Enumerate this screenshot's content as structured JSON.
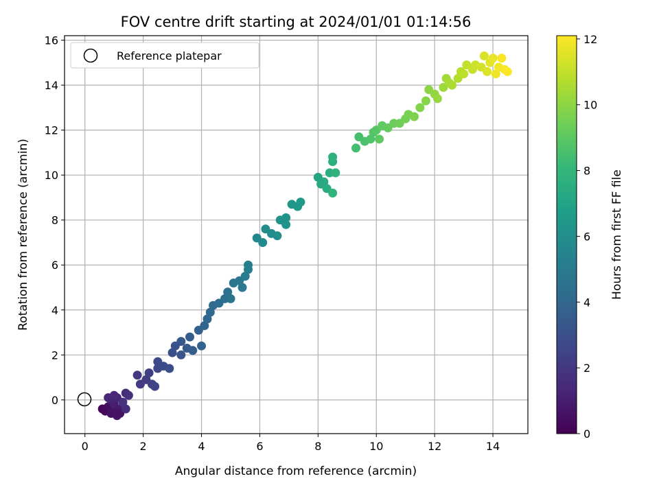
{
  "chart_data": {
    "type": "scatter",
    "title": "FOV centre drift starting at 2024/01/01 01:14:56",
    "xlabel": "Angular distance from reference (arcmin)",
    "ylabel": "Rotation from reference (arcmin)",
    "xlim": [
      -0.7,
      15.2
    ],
    "ylim": [
      -1.5,
      16.2
    ],
    "xticks": [
      0,
      2,
      4,
      6,
      8,
      10,
      12,
      14
    ],
    "yticks": [
      0,
      2,
      4,
      6,
      8,
      10,
      12,
      14,
      16
    ],
    "grid": true,
    "legend": {
      "placement": "top-left",
      "entries": [
        "Reference platepar"
      ]
    },
    "reference_point": {
      "x": 0,
      "y": 0
    },
    "colorbar": {
      "label": "Hours from first FF file",
      "range": [
        0,
        12.1
      ],
      "ticks": [
        0,
        2,
        4,
        6,
        8,
        10,
        12
      ],
      "colormap": "viridis",
      "colors": [
        "#440154",
        "#482878",
        "#3e4989",
        "#31688e",
        "#26828e",
        "#1f9e89",
        "#35b779",
        "#6ece58",
        "#b5de2b",
        "#fde725"
      ]
    },
    "series": [
      {
        "points": [
          [
            0.6,
            -0.4,
            0.2
          ],
          [
            0.7,
            -0.5,
            0.3
          ],
          [
            0.8,
            -0.3,
            0.4
          ],
          [
            0.9,
            -0.6,
            0.5
          ],
          [
            1.0,
            -0.5,
            0.6
          ],
          [
            1.1,
            -0.7,
            0.7
          ],
          [
            1.2,
            -0.4,
            0.8
          ],
          [
            1.3,
            -0.3,
            0.9
          ],
          [
            1.0,
            -0.2,
            1.0
          ],
          [
            0.9,
            0.0,
            1.1
          ],
          [
            1.1,
            0.1,
            1.2
          ],
          [
            0.8,
            0.1,
            1.3
          ],
          [
            1.0,
            0.2,
            1.4
          ],
          [
            1.2,
            -0.6,
            0.6
          ],
          [
            1.4,
            -0.4,
            1.5
          ],
          [
            1.4,
            0.3,
            1.6
          ],
          [
            1.5,
            0.2,
            1.7
          ],
          [
            1.3,
            -0.1,
            1.8
          ],
          [
            1.8,
            1.1,
            2.0
          ],
          [
            1.9,
            0.7,
            2.1
          ],
          [
            2.1,
            0.9,
            2.2
          ],
          [
            2.2,
            1.2,
            2.3
          ],
          [
            2.3,
            0.7,
            2.4
          ],
          [
            2.4,
            0.6,
            2.5
          ],
          [
            2.5,
            1.4,
            2.6
          ],
          [
            2.5,
            1.7,
            2.7
          ],
          [
            2.7,
            1.5,
            2.8
          ],
          [
            2.9,
            1.4,
            2.9
          ],
          [
            3.0,
            2.1,
            3.0
          ],
          [
            3.1,
            2.4,
            3.1
          ],
          [
            3.3,
            2.0,
            3.2
          ],
          [
            3.3,
            2.6,
            3.3
          ],
          [
            3.5,
            2.3,
            3.4
          ],
          [
            3.6,
            2.8,
            3.5
          ],
          [
            3.7,
            2.2,
            3.6
          ],
          [
            3.9,
            3.1,
            3.7
          ],
          [
            4.0,
            2.4,
            3.8
          ],
          [
            4.1,
            3.3,
            3.9
          ],
          [
            4.2,
            3.6,
            4.0
          ],
          [
            4.3,
            3.9,
            4.1
          ],
          [
            4.4,
            4.2,
            4.2
          ],
          [
            4.6,
            4.3,
            4.3
          ],
          [
            4.8,
            4.5,
            4.4
          ],
          [
            4.9,
            4.8,
            4.5
          ],
          [
            5.0,
            4.5,
            4.6
          ],
          [
            5.1,
            5.2,
            4.7
          ],
          [
            5.3,
            5.3,
            4.8
          ],
          [
            5.4,
            5.0,
            4.9
          ],
          [
            5.5,
            5.5,
            5.0
          ],
          [
            5.6,
            5.8,
            5.1
          ],
          [
            5.6,
            6.0,
            5.2
          ],
          [
            5.9,
            7.2,
            5.6
          ],
          [
            6.1,
            7.0,
            5.7
          ],
          [
            6.2,
            7.6,
            5.8
          ],
          [
            6.4,
            7.4,
            5.9
          ],
          [
            6.6,
            7.3,
            6.0
          ],
          [
            6.7,
            8.0,
            6.1
          ],
          [
            6.9,
            8.1,
            6.2
          ],
          [
            6.9,
            7.8,
            6.3
          ],
          [
            7.1,
            8.7,
            6.4
          ],
          [
            7.3,
            8.6,
            6.5
          ],
          [
            7.4,
            8.8,
            6.6
          ],
          [
            8.0,
            9.9,
            7.1
          ],
          [
            8.1,
            9.6,
            7.2
          ],
          [
            8.2,
            9.7,
            7.3
          ],
          [
            8.3,
            9.4,
            7.4
          ],
          [
            8.4,
            10.1,
            7.5
          ],
          [
            8.5,
            10.6,
            7.6
          ],
          [
            8.5,
            10.8,
            7.7
          ],
          [
            8.6,
            10.1,
            7.8
          ],
          [
            8.5,
            9.2,
            7.9
          ],
          [
            9.3,
            11.2,
            8.4
          ],
          [
            9.4,
            11.7,
            8.5
          ],
          [
            9.6,
            11.5,
            8.6
          ],
          [
            9.8,
            11.6,
            8.7
          ],
          [
            9.9,
            11.9,
            8.8
          ],
          [
            10.0,
            12.0,
            8.9
          ],
          [
            10.1,
            11.6,
            9.0
          ],
          [
            10.2,
            12.2,
            9.1
          ],
          [
            10.4,
            12.1,
            9.2
          ],
          [
            10.6,
            12.3,
            9.3
          ],
          [
            10.8,
            12.3,
            9.4
          ],
          [
            11.0,
            12.5,
            9.5
          ],
          [
            11.1,
            12.7,
            9.6
          ],
          [
            11.3,
            12.6,
            9.7
          ],
          [
            11.5,
            13.0,
            9.8
          ],
          [
            11.7,
            13.3,
            9.9
          ],
          [
            11.8,
            13.8,
            10.0
          ],
          [
            12.0,
            13.6,
            10.1
          ],
          [
            12.1,
            13.4,
            10.2
          ],
          [
            12.3,
            13.9,
            10.3
          ],
          [
            12.4,
            14.3,
            10.4
          ],
          [
            12.5,
            14.1,
            10.5
          ],
          [
            12.6,
            14.0,
            10.6
          ],
          [
            12.8,
            14.3,
            10.7
          ],
          [
            12.9,
            14.6,
            10.8
          ],
          [
            13.0,
            14.5,
            10.9
          ],
          [
            13.1,
            14.9,
            11.0
          ],
          [
            13.3,
            14.7,
            11.1
          ],
          [
            13.4,
            14.9,
            11.2
          ],
          [
            13.6,
            14.8,
            11.3
          ],
          [
            13.7,
            15.3,
            11.4
          ],
          [
            13.8,
            14.6,
            11.5
          ],
          [
            13.9,
            15.0,
            11.6
          ],
          [
            14.0,
            15.2,
            11.7
          ],
          [
            14.1,
            14.5,
            11.8
          ],
          [
            14.2,
            14.8,
            11.9
          ],
          [
            14.3,
            15.2,
            12.0
          ],
          [
            14.4,
            14.7,
            12.0
          ],
          [
            14.5,
            14.6,
            12.1
          ]
        ]
      }
    ]
  }
}
